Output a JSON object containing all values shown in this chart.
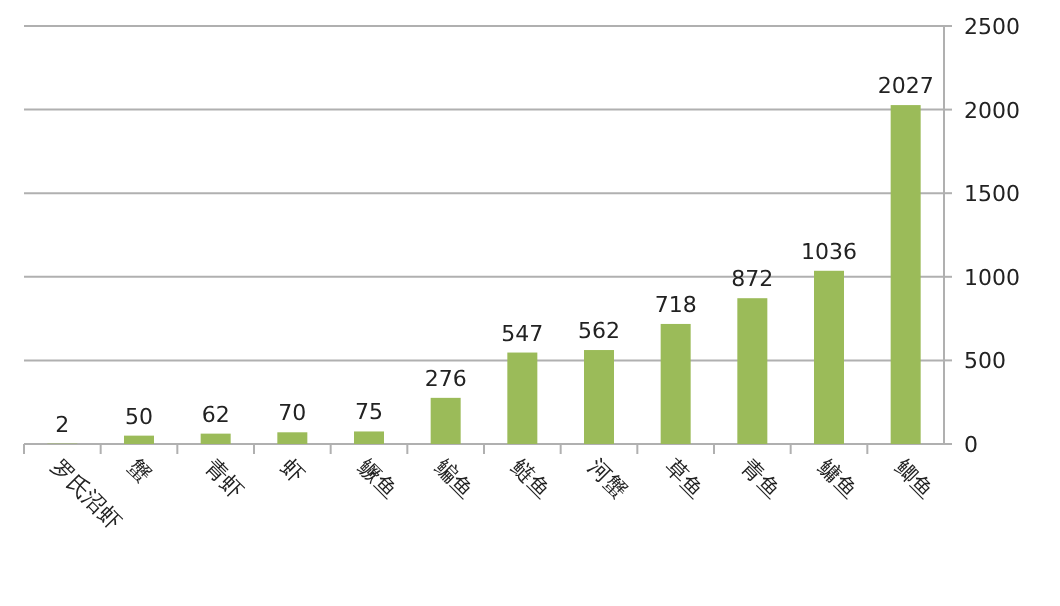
{
  "chart_data": {
    "type": "bar",
    "categories": [
      "罗氏沼虾",
      "蟹",
      "青虾",
      "虾",
      "鳜鱼",
      "鳊鱼",
      "鲢鱼",
      "河蟹",
      "草鱼",
      "青鱼",
      "鳙鱼",
      "鲫鱼"
    ],
    "values": [
      2,
      50,
      62,
      70,
      75,
      276,
      547,
      562,
      718,
      872,
      1036,
      2027
    ],
    "color": "#9bbb59",
    "ylim": [
      0,
      2500
    ],
    "yticks": [
      0,
      500,
      1000,
      1500,
      2000,
      2500
    ],
    "grid": "y",
    "data_labels": true
  }
}
